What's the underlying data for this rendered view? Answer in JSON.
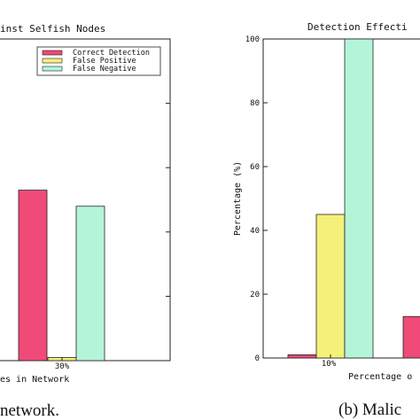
{
  "chart_data": [
    {
      "type": "bar",
      "title": "inst Selfish Nodes",
      "xlabel": "es in Network",
      "ylabel": "",
      "categories": [
        "30%"
      ],
      "series": [
        {
          "name": "Correct Detection",
          "values": [
            53
          ],
          "color": "#f04a78"
        },
        {
          "name": "False Positive",
          "values": [
            1
          ],
          "color": "#f5f07a"
        },
        {
          "name": "False Negative",
          "values": [
            48
          ],
          "color": "#b4f5da"
        }
      ],
      "ylim": [
        0,
        100
      ],
      "legend": "top",
      "caption": "network."
    },
    {
      "type": "bar",
      "title": "Detection Effecti",
      "xlabel": "Percentage o",
      "ylabel": "Percentage (%)",
      "yticks": [
        "0",
        "20",
        "40",
        "60",
        "80",
        "100"
      ],
      "categories": [
        "10%",
        ""
      ],
      "series": [
        {
          "name": "Correct Detection",
          "values": [
            1,
            13
          ],
          "color": "#f04a78"
        },
        {
          "name": "False Positive",
          "values": [
            45,
            null
          ],
          "color": "#f5f07a"
        },
        {
          "name": "False Negative",
          "values": [
            100,
            null
          ],
          "color": "#b4f5da"
        }
      ],
      "ylim": [
        0,
        100
      ],
      "caption": "(b) Malic"
    }
  ]
}
